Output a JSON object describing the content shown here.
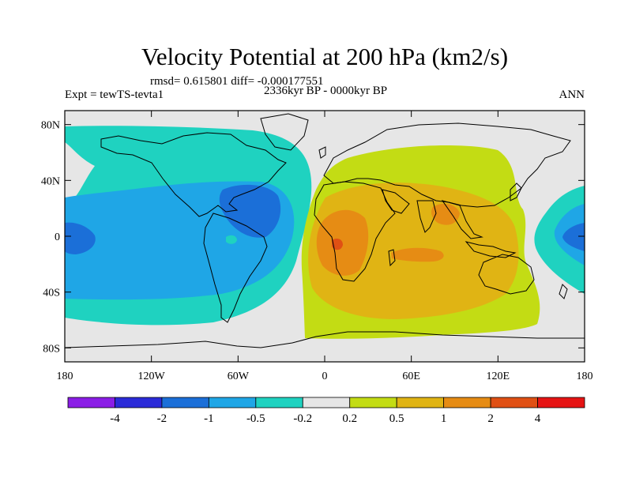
{
  "title": "Velocity Potential at 200 hPa (km2/s)",
  "stats_line": "rmsd= 0.615801 diff= -0.000177551",
  "experiment": "Expt = tewTS-tevta1",
  "period": "2336kyr BP - 0000kyr BP",
  "season": "ANN",
  "axes": {
    "lat_ticks": [
      {
        "value": 80,
        "label": "80N"
      },
      {
        "value": 40,
        "label": "40N"
      },
      {
        "value": 0,
        "label": "0"
      },
      {
        "value": -40,
        "label": "40S"
      },
      {
        "value": -80,
        "label": "80S"
      }
    ],
    "lon_ticks": [
      {
        "value": -180,
        "label": "180"
      },
      {
        "value": -120,
        "label": "120W"
      },
      {
        "value": -60,
        "label": "60W"
      },
      {
        "value": 0,
        "label": "0"
      },
      {
        "value": 60,
        "label": "60E"
      },
      {
        "value": 120,
        "label": "120E"
      },
      {
        "value": 180,
        "label": "180"
      }
    ],
    "lon_range": [
      -180,
      180
    ],
    "lat_range": [
      -90,
      90
    ]
  },
  "colorbar": {
    "colors": [
      "#8b1ee6",
      "#2b2bd8",
      "#1b6fd8",
      "#1fa6e6",
      "#1fd2c0",
      "#e6e6e6",
      "#c3dc14",
      "#e0b414",
      "#e68c14",
      "#e05014",
      "#e61414"
    ],
    "labels": [
      "-4",
      "-2",
      "-1",
      "-0.5",
      "-0.2",
      "0.2",
      "0.5",
      "1",
      "2",
      "4"
    ]
  },
  "colors": {
    "background_land_sea": "#e6e6e6",
    "cyan": "#1fd2c0",
    "light_blue": "#1fa6e6",
    "blue": "#1b6fd8",
    "yellow_green": "#c3dc14",
    "orange_yellow": "#e0b414",
    "orange": "#e68c14",
    "red_orange": "#e05014"
  }
}
